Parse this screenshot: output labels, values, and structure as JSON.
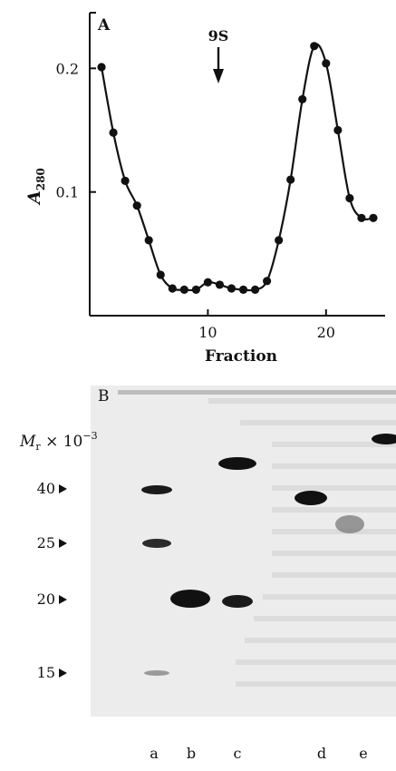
{
  "chart_data": {
    "type": "line",
    "panel_label": "A",
    "xlabel": "Fraction",
    "ylabel": "A",
    "ylabel_subscript": "280",
    "x_ticks": [
      "10",
      "20"
    ],
    "y_ticks": [
      "0.1",
      "0.2"
    ],
    "xlim": [
      0,
      25
    ],
    "ylim": [
      0,
      0.245
    ],
    "annotation": {
      "text": "9S",
      "x": 11
    },
    "x": [
      1,
      2,
      3,
      4,
      5,
      6,
      7,
      8,
      9,
      10,
      11,
      12,
      13,
      14,
      15,
      16,
      17,
      18,
      19,
      20,
      21,
      22,
      23,
      24
    ],
    "values": [
      0.201,
      0.148,
      0.109,
      0.089,
      0.061,
      0.033,
      0.022,
      0.021,
      0.021,
      0.027,
      0.025,
      0.022,
      0.021,
      0.021,
      0.028,
      0.061,
      0.11,
      0.175,
      0.218,
      0.204,
      0.15,
      0.095,
      0.079,
      0.079
    ],
    "grid": false
  },
  "gel": {
    "panel_label": "B",
    "mr_label": "M",
    "mr_sub": "r",
    "mr_suffix": " × 10",
    "mr_exp": "−3",
    "markers": [
      {
        "label": "40",
        "kda": 40
      },
      {
        "label": "25",
        "kda": 25
      },
      {
        "label": "20",
        "kda": 20
      },
      {
        "label": "15",
        "kda": 15
      }
    ],
    "lanes": [
      "a",
      "b",
      "c",
      "d",
      "e"
    ]
  },
  "colors": {
    "ink": "#111111",
    "gel_background": "#ececec",
    "band": "#1a1a1a"
  }
}
